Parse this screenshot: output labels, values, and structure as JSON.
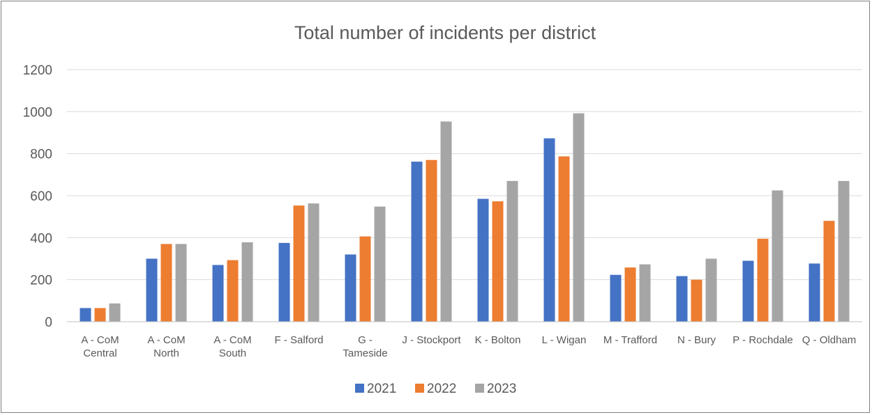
{
  "chart_data": {
    "type": "bar",
    "title": "Total number of incidents per district",
    "xlabel": "",
    "ylabel": "",
    "ylim": [
      0,
      1200
    ],
    "yticks": [
      0,
      200,
      400,
      600,
      800,
      1000,
      1200
    ],
    "grid": true,
    "legend_position": "bottom",
    "categories": [
      [
        "A - CoM",
        "Central"
      ],
      [
        "A - CoM",
        "North"
      ],
      [
        "A - CoM",
        "South"
      ],
      [
        "F - Salford"
      ],
      [
        "G -",
        "Tameside"
      ],
      [
        "J - Stockport"
      ],
      [
        "K - Bolton"
      ],
      [
        "L - Wigan"
      ],
      [
        "M - Trafford"
      ],
      [
        "N - Bury"
      ],
      [
        "P - Rochdale"
      ],
      [
        "Q - Oldham"
      ]
    ],
    "series": [
      {
        "name": "2021",
        "color": "#4472c4",
        "values": [
          65,
          300,
          270,
          375,
          320,
          762,
          585,
          873,
          223,
          217,
          290,
          277
        ]
      },
      {
        "name": "2022",
        "color": "#ed7d31",
        "values": [
          65,
          370,
          293,
          553,
          406,
          770,
          573,
          787,
          258,
          200,
          395,
          480
        ]
      },
      {
        "name": "2023",
        "color": "#a5a5a5",
        "values": [
          87,
          370,
          378,
          563,
          548,
          953,
          670,
          992,
          273,
          300,
          625,
          670
        ]
      }
    ]
  }
}
